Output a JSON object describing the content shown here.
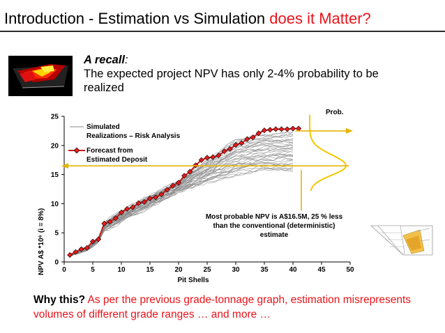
{
  "slide": {
    "title_main": "Introduction - Estimation vs Simulation ",
    "title_highlight": "does it Matter?",
    "recall_heading": "A recall",
    "recall_colon": ":",
    "recall_text": "The expected project NPV has only 2-4% probability to be realized",
    "footer_question": "Why this?",
    "footer_text": "  As per the previous grade-tonnage graph, estimation misrepresents volumes of different grade ranges … and more …"
  },
  "colors": {
    "accent_red": "#e8141b",
    "forecast_line": "#c81818",
    "forecast_marker": "#e81c1c",
    "realizations": "#8a8a8a",
    "prob_curve": "#f6c700",
    "prob_arrow": "#e6b400",
    "text": "#000000"
  },
  "chart_data": {
    "type": "line",
    "xlabel": "Pit Shells",
    "ylabel": "NPV  A$  *10⁶ (i = 8%)",
    "xlim": [
      0,
      50
    ],
    "ylim": [
      0,
      25
    ],
    "x_ticks": [
      0,
      5,
      10,
      15,
      20,
      25,
      30,
      35,
      40,
      45,
      50
    ],
    "y_ticks": [
      0,
      5,
      10,
      15,
      20,
      25
    ],
    "prob_label": "Prob.",
    "legend": {
      "simulated_label_1": "Simulated",
      "simulated_label_2": "Realizations – Risk Analysis",
      "forecast_label_1": "Forecast  from",
      "forecast_label_2": "Estimated  Deposit"
    },
    "annotation": {
      "line1": "Most probable NPV is A$16.5M, 25 % less",
      "line2": "than the conventional (deterministic)",
      "line3": "estimate"
    },
    "most_probable_npv": 16.5,
    "n_realizations": 40,
    "forecast": {
      "name": "Forecast from Estimated Deposit",
      "x": [
        1,
        2,
        3,
        4,
        5,
        6,
        7,
        8,
        9,
        10,
        11,
        12,
        13,
        14,
        15,
        16,
        17,
        18,
        19,
        20,
        21,
        22,
        23,
        24,
        25,
        26,
        27,
        28,
        29,
        30,
        31,
        32,
        33,
        34,
        35,
        36,
        37,
        38,
        39,
        40,
        41
      ],
      "y": [
        1.2,
        1.7,
        2.2,
        2.4,
        3.5,
        3.9,
        6.6,
        6.9,
        7.5,
        8.5,
        9.1,
        9.4,
        10.1,
        10.3,
        10.9,
        11.1,
        11.6,
        12.4,
        13.1,
        13.6,
        14.8,
        15.5,
        16.6,
        17.5,
        17.9,
        18.0,
        18.3,
        19.0,
        19.4,
        20.1,
        20.4,
        21.1,
        21.4,
        22.1,
        22.6,
        22.7,
        22.8,
        22.8,
        22.8,
        22.9,
        22.9
      ]
    },
    "simulated_envelope": {
      "name": "Simulated Realizations – Risk Analysis",
      "x": [
        1,
        4,
        6,
        7,
        10,
        15,
        20,
        24,
        28,
        30,
        35,
        40
      ],
      "low": [
        1.0,
        2.0,
        3.5,
        5.4,
        6.9,
        9.5,
        12.0,
        13.3,
        14.4,
        15.0,
        15.6,
        15.6
      ],
      "high": [
        1.3,
        2.6,
        4.1,
        6.8,
        8.7,
        11.3,
        13.9,
        16.8,
        19.6,
        21.1,
        22.0,
        22.4
      ]
    }
  }
}
